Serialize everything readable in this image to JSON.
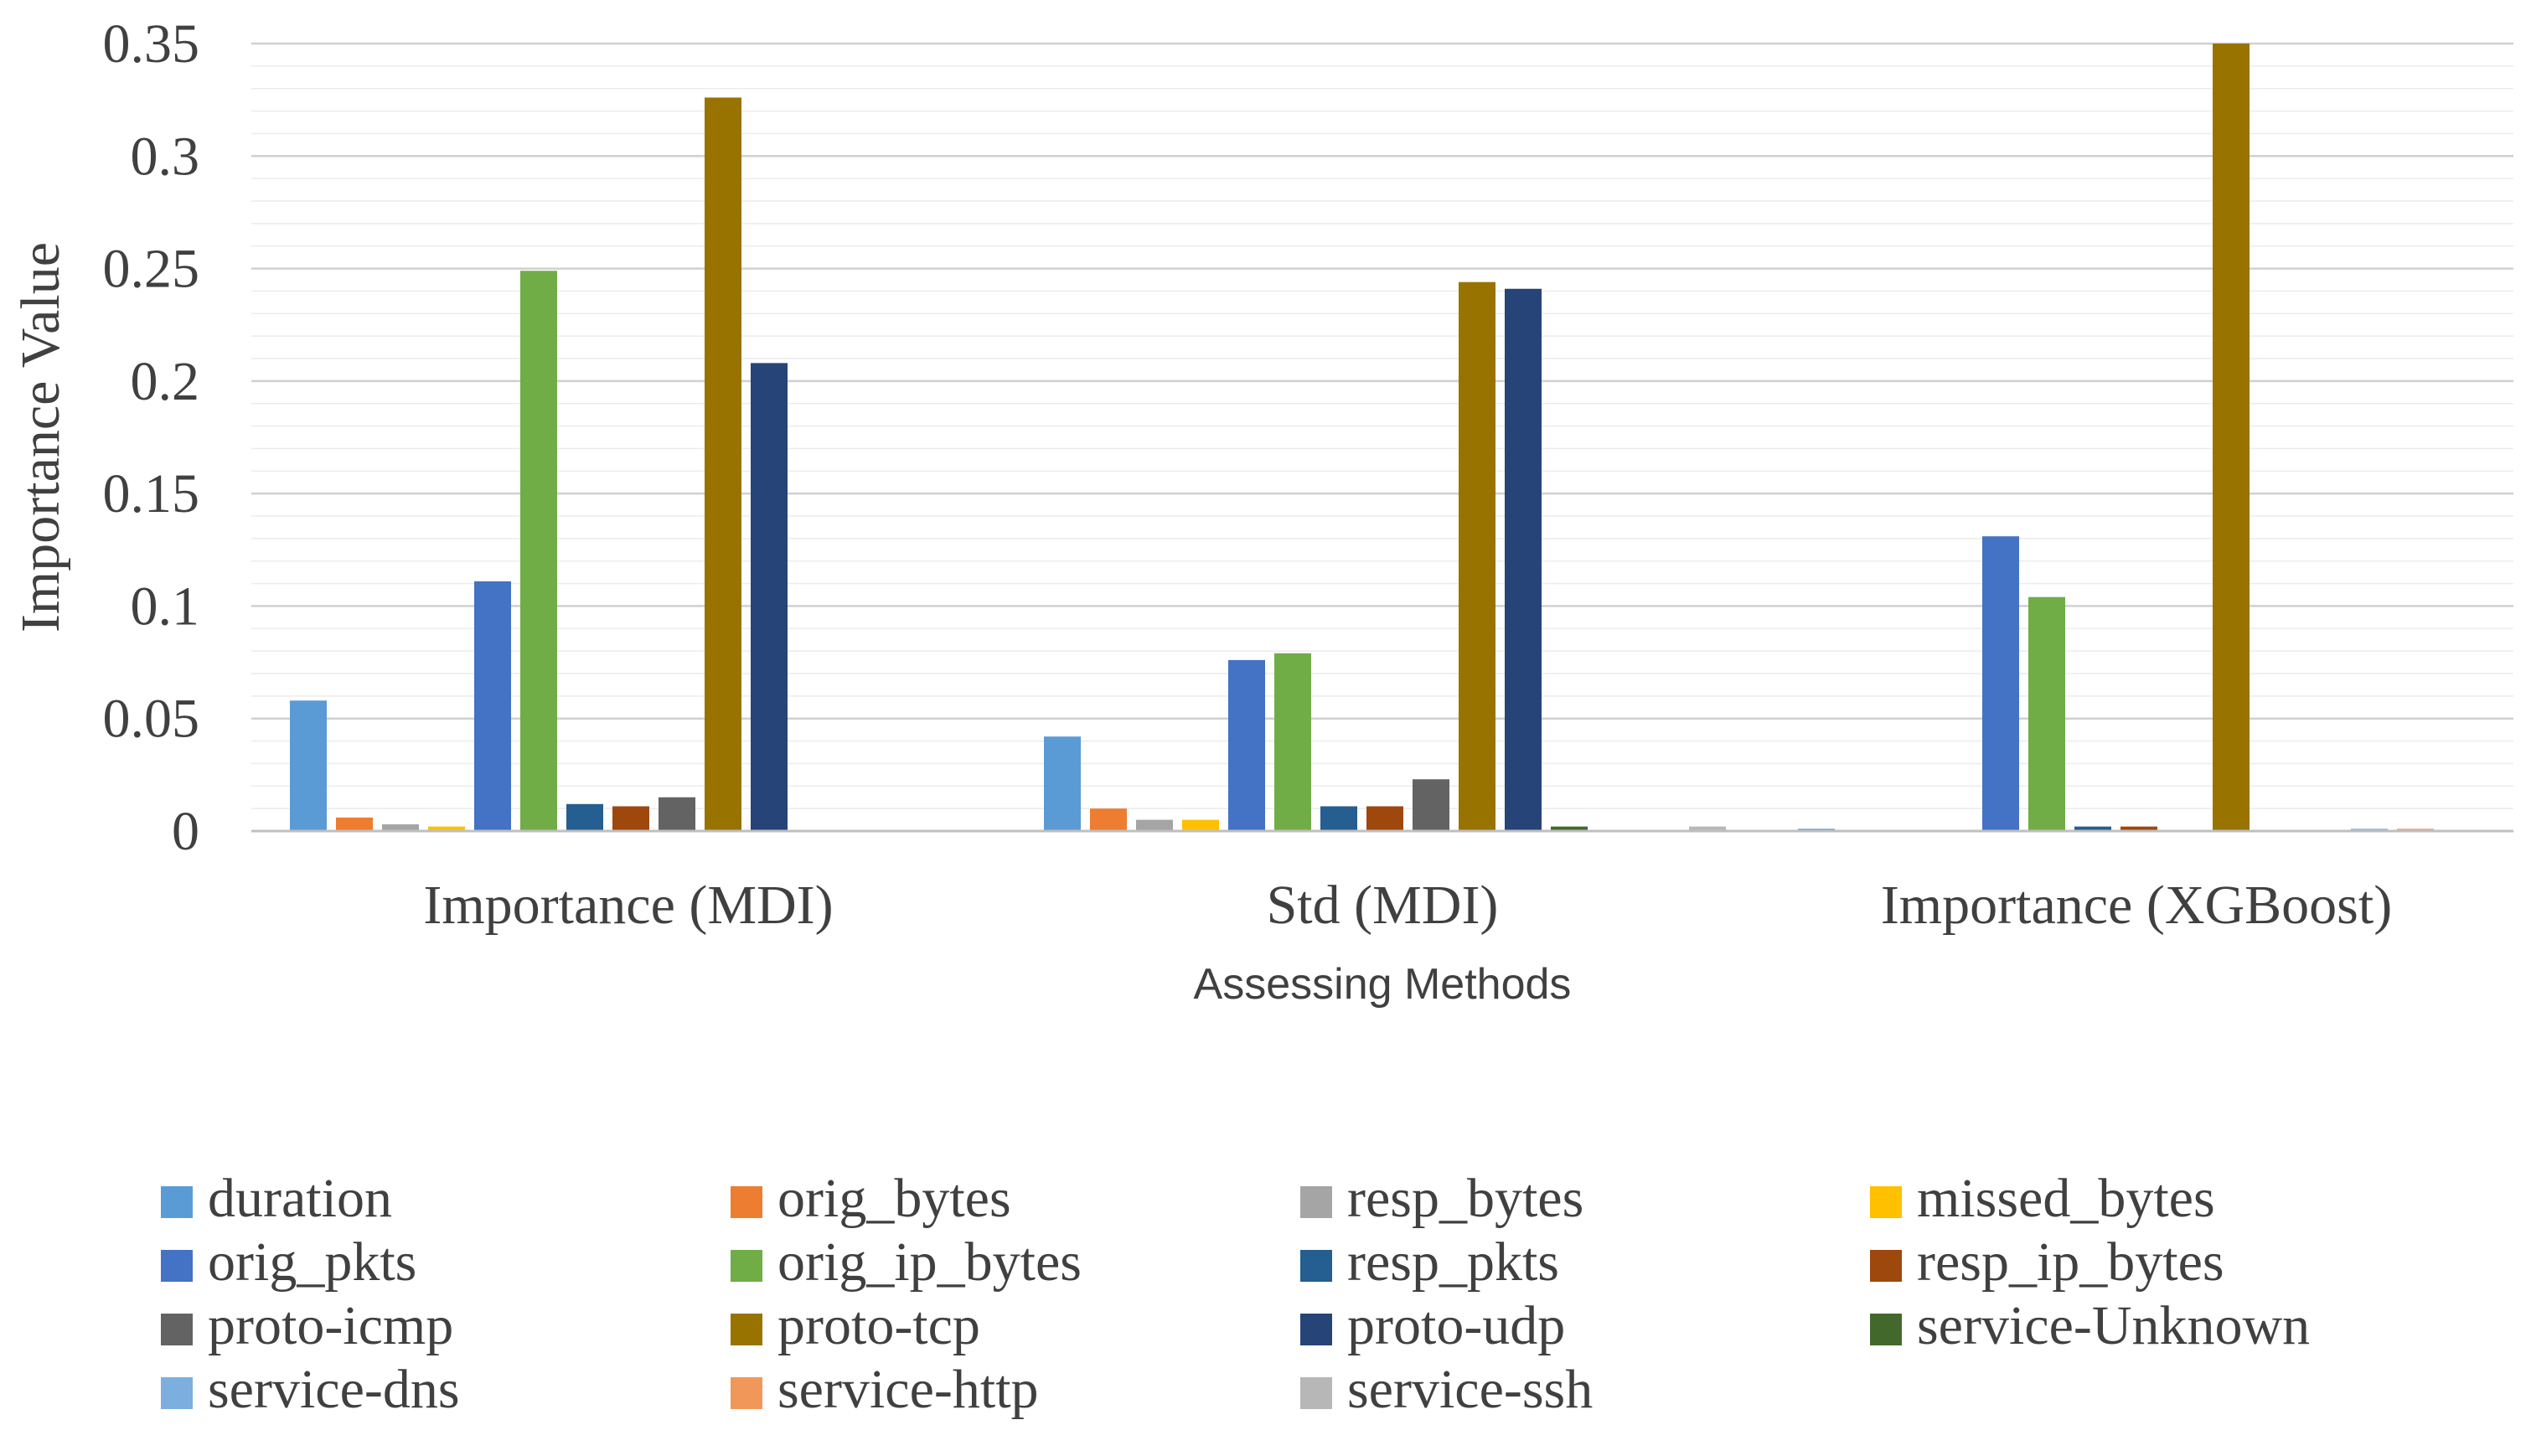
{
  "chart_data": {
    "type": "bar",
    "title": "",
    "xlabel": "Assessing Methods",
    "ylabel": "Importance Value",
    "ylim": [
      0,
      0.35
    ],
    "y_ticks": [
      "0",
      "0.05",
      "0.1",
      "0.15",
      "0.2",
      "0.25",
      "0.3",
      "0.35"
    ],
    "y_tick_values": [
      0,
      0.05,
      0.1,
      0.15,
      0.2,
      0.25,
      0.3,
      0.35
    ],
    "grid": true,
    "legend_position": "bottom",
    "categories": [
      "Importance (MDI)",
      "Std (MDI)",
      "Importance (XGBoost)"
    ],
    "series": [
      {
        "name": "duration",
        "color": "#5B9BD5",
        "values": [
          0.058,
          0.042,
          0.001
        ]
      },
      {
        "name": "orig_bytes",
        "color": "#ED7D31",
        "values": [
          0.006,
          0.01,
          0.0
        ]
      },
      {
        "name": "resp_bytes",
        "color": "#A5A5A5",
        "values": [
          0.003,
          0.005,
          0.0
        ]
      },
      {
        "name": "missed_bytes",
        "color": "#FFC000",
        "values": [
          0.002,
          0.005,
          0.0
        ]
      },
      {
        "name": "orig_pkts",
        "color": "#4472C4",
        "values": [
          0.111,
          0.076,
          0.131
        ]
      },
      {
        "name": "orig_ip_bytes",
        "color": "#70AD47",
        "values": [
          0.249,
          0.079,
          0.104
        ]
      },
      {
        "name": "resp_pkts",
        "color": "#255E91",
        "values": [
          0.012,
          0.011,
          0.002
        ]
      },
      {
        "name": "resp_ip_bytes",
        "color": "#9E480E",
        "values": [
          0.011,
          0.011,
          0.002
        ]
      },
      {
        "name": "proto-icmp",
        "color": "#636363",
        "values": [
          0.015,
          0.023,
          0.0
        ]
      },
      {
        "name": "proto-tcp",
        "color": "#997300",
        "values": [
          0.326,
          0.244,
          0.35
        ]
      },
      {
        "name": "proto-udp",
        "color": "#264478",
        "values": [
          0.208,
          0.241,
          0.0
        ]
      },
      {
        "name": "service-Unknown",
        "color": "#43682B",
        "values": [
          0.0,
          0.002,
          0.0
        ]
      },
      {
        "name": "service-dns",
        "color": "#7CAFDD",
        "values": [
          0.0,
          0.0,
          0.001
        ]
      },
      {
        "name": "service-http",
        "color": "#F1975A",
        "values": [
          0.0,
          0.0,
          0.001
        ]
      },
      {
        "name": "service-ssh",
        "color": "#B7B7B7",
        "values": [
          0.0,
          0.002,
          0.0
        ]
      }
    ]
  }
}
